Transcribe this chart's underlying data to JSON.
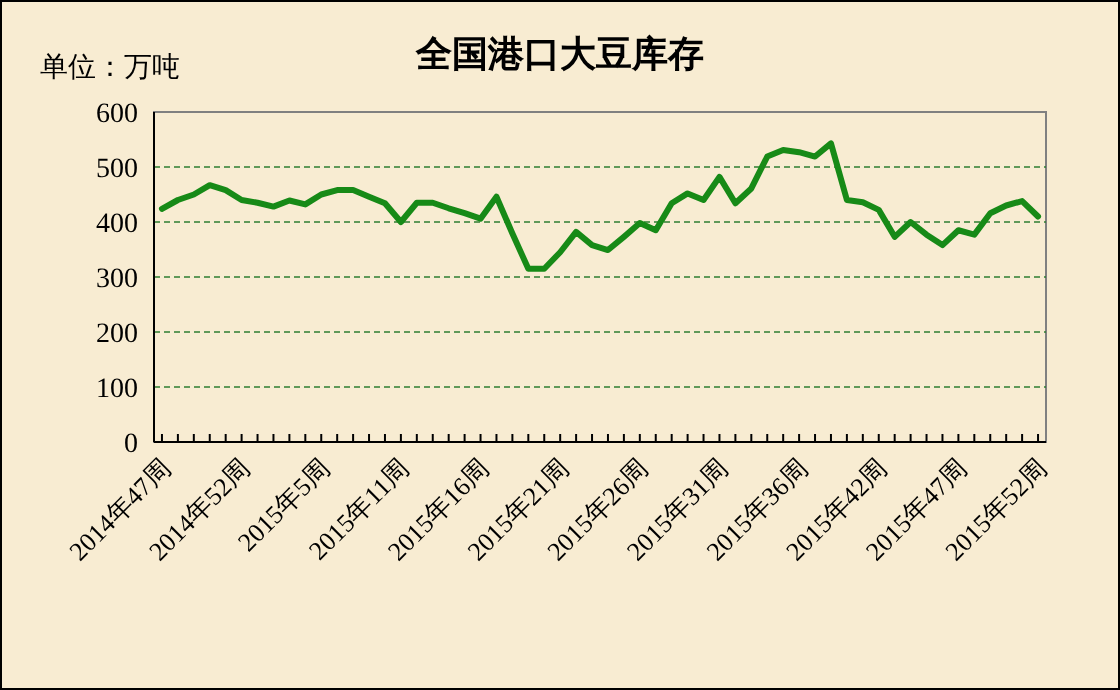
{
  "chart_data": {
    "type": "line",
    "title": "全国港口大豆库存",
    "ylabel": "单位：万吨",
    "categories": [
      "2014年47周",
      null,
      null,
      null,
      null,
      "2014年52周",
      null,
      null,
      null,
      null,
      "2015年5周",
      null,
      null,
      null,
      null,
      "2015年11周",
      null,
      null,
      null,
      null,
      "2015年16周",
      null,
      null,
      null,
      null,
      "2015年21周",
      null,
      null,
      null,
      null,
      "2015年26周",
      null,
      null,
      null,
      null,
      "2015年31周",
      null,
      null,
      null,
      null,
      "2015年36周",
      null,
      null,
      null,
      null,
      "2015年42周",
      null,
      null,
      null,
      null,
      "2015年47周",
      null,
      null,
      null,
      null,
      "2015年52周"
    ],
    "series": [
      {
        "color": "#178a17",
        "values": [
          424,
          440,
          450,
          467,
          458,
          440,
          435,
          428,
          439,
          432,
          450,
          458,
          458,
          446,
          434,
          400,
          435,
          435,
          425,
          416,
          406,
          446,
          379,
          315,
          315,
          345,
          382,
          358,
          349,
          373,
          398,
          385,
          434,
          452,
          440,
          482,
          434,
          461,
          519,
          531,
          527,
          519,
          543,
          440,
          436,
          422,
          373,
          400,
          377,
          358,
          385,
          377,
          416,
          430,
          438,
          410
        ]
      }
    ],
    "ylim": [
      0,
      600
    ],
    "yticks": [
      0,
      100,
      200,
      300,
      400,
      500,
      600
    ],
    "grid": "y"
  }
}
